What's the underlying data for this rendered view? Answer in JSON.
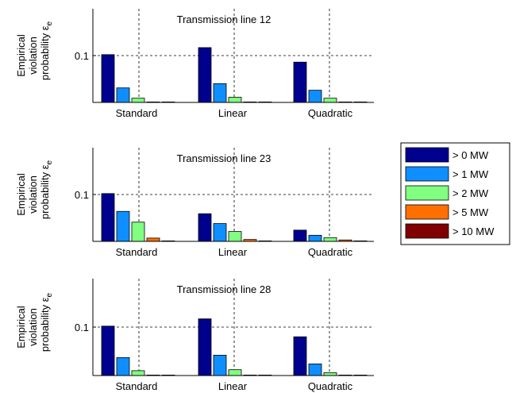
{
  "chart_data": [
    {
      "type": "bar",
      "title": "Transmission line 12",
      "ylabel": [
        "Empirical",
        "violation",
        "probability ε",
        "e"
      ],
      "categories": [
        "Standard",
        "Linear",
        "Quadratic"
      ],
      "yticks": [
        0.1
      ],
      "ylim": [
        0,
        0.2
      ],
      "grid": "dashed",
      "series": [
        {
          "name": "> 0 MW",
          "values": [
            0.102,
            0.117,
            0.086
          ]
        },
        {
          "name": "> 1 MW",
          "values": [
            0.031,
            0.04,
            0.026
          ]
        },
        {
          "name": "> 2 MW",
          "values": [
            0.009,
            0.011,
            0.009
          ]
        },
        {
          "name": "> 5 MW",
          "values": [
            0.001,
            0.001,
            0.001
          ]
        },
        {
          "name": "> 10 MW",
          "values": [
            0.0005,
            0.0005,
            0.0005
          ]
        }
      ]
    },
    {
      "type": "bar",
      "title": "Transmission line 23",
      "ylabel": [
        "Empirical",
        "violation",
        "probability ε",
        "e"
      ],
      "categories": [
        "Standard",
        "Linear",
        "Quadratic"
      ],
      "yticks": [
        0.1
      ],
      "ylim": [
        0,
        0.2
      ],
      "grid": "dashed",
      "series": [
        {
          "name": "> 0 MW",
          "values": [
            0.102,
            0.059,
            0.024
          ]
        },
        {
          "name": "> 1 MW",
          "values": [
            0.064,
            0.038,
            0.013
          ]
        },
        {
          "name": "> 2 MW",
          "values": [
            0.041,
            0.021,
            0.008
          ]
        },
        {
          "name": "> 5 MW",
          "values": [
            0.007,
            0.004,
            0.003
          ]
        },
        {
          "name": "> 10 MW",
          "values": [
            0.001,
            0.001,
            0.001
          ]
        }
      ]
    },
    {
      "type": "bar",
      "title": "Transmission line 28",
      "ylabel": [
        "Empirical",
        "violation",
        "probability ε",
        "e"
      ],
      "categories": [
        "Standard",
        "Linear",
        "Quadratic"
      ],
      "yticks": [
        0.1
      ],
      "ylim": [
        0,
        0.2
      ],
      "grid": "dashed",
      "series": [
        {
          "name": "> 0 MW",
          "values": [
            0.102,
            0.117,
            0.08
          ]
        },
        {
          "name": "> 1 MW",
          "values": [
            0.037,
            0.042,
            0.024
          ]
        },
        {
          "name": "> 2 MW",
          "values": [
            0.01,
            0.012,
            0.006
          ]
        },
        {
          "name": "> 5 MW",
          "values": [
            0.001,
            0.001,
            0.001
          ]
        },
        {
          "name": "> 10 MW",
          "values": [
            0.0005,
            0.0005,
            0.0005
          ]
        }
      ]
    }
  ],
  "legend": {
    "placement": "right",
    "items": [
      {
        "label": "> 0 MW",
        "color": "#00008f"
      },
      {
        "label": "> 1 MW",
        "color": "#0f8fff"
      },
      {
        "label": "> 2 MW",
        "color": "#80ff80"
      },
      {
        "label": "> 5 MW",
        "color": "#ff7000"
      },
      {
        "label": "> 10 MW",
        "color": "#800000"
      }
    ]
  }
}
